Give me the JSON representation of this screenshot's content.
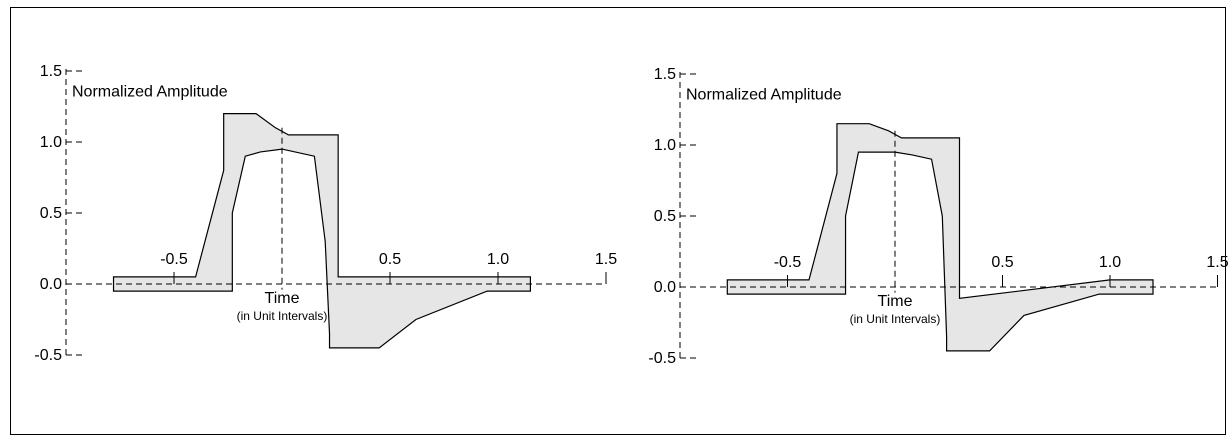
{
  "chart_data": [
    {
      "type": "area",
      "title": "",
      "ylabel": "Normalized Amplitude",
      "xlabel": "Time",
      "xlabel_sub": "(in Unit Intervals)",
      "xlim": [
        -1.0,
        1.5
      ],
      "ylim": [
        -0.5,
        1.5
      ],
      "x_ticks": [
        -0.5,
        0.5,
        1.0,
        1.5
      ],
      "x_tick_labels": [
        "-0.5",
        "0.5",
        "1.0",
        "1.5"
      ],
      "y_ticks": [
        -0.5,
        0.0,
        0.5,
        1.0,
        1.5
      ],
      "y_tick_labels": [
        "-0.5",
        "0.0",
        "0.5",
        "1.0",
        "1.5"
      ],
      "grid": false,
      "series": [
        {
          "upper": [
            [
              -0.78,
              0.05
            ],
            [
              -0.4,
              0.05
            ],
            [
              -0.27,
              0.8
            ],
            [
              -0.27,
              1.2
            ],
            [
              -0.12,
              1.2
            ],
            [
              -0.03,
              1.1
            ],
            [
              0.03,
              1.05
            ],
            [
              0.26,
              1.05
            ],
            [
              0.26,
              0.05
            ],
            [
              0.82,
              0.05
            ],
            [
              1.15,
              0.05
            ]
          ],
          "lower": [
            [
              -0.78,
              -0.05
            ],
            [
              -0.23,
              -0.05
            ],
            [
              -0.23,
              0.5
            ],
            [
              -0.17,
              0.9
            ],
            [
              -0.1,
              0.93
            ],
            [
              0.0,
              0.95
            ],
            [
              0.15,
              0.9
            ],
            [
              0.2,
              0.3
            ],
            [
              0.22,
              -0.35
            ],
            [
              0.22,
              -0.45
            ],
            [
              0.45,
              -0.45
            ],
            [
              0.62,
              -0.25
            ],
            [
              0.95,
              -0.05
            ],
            [
              1.15,
              -0.05
            ]
          ]
        }
      ]
    },
    {
      "type": "area",
      "title": "",
      "ylabel": "Normalized Amplitude",
      "xlabel": "Time",
      "xlabel_sub": "(in Unit Intervals)",
      "xlim": [
        -1.0,
        1.5
      ],
      "ylim": [
        -0.5,
        1.5
      ],
      "x_ticks": [
        -0.5,
        0.5,
        1.0,
        1.5
      ],
      "x_tick_labels": [
        "-0.5",
        "0.5",
        "1.0",
        "1.5"
      ],
      "y_ticks": [
        -0.5,
        0.0,
        0.5,
        1.0,
        1.5
      ],
      "y_tick_labels": [
        "-0.5",
        "0.0",
        "0.5",
        "1.0",
        "1.5"
      ],
      "grid": false,
      "series": [
        {
          "upper": [
            [
              -0.78,
              0.05
            ],
            [
              -0.4,
              0.05
            ],
            [
              -0.27,
              0.8
            ],
            [
              -0.27,
              1.15
            ],
            [
              -0.12,
              1.15
            ],
            [
              -0.03,
              1.1
            ],
            [
              0.03,
              1.05
            ],
            [
              0.3,
              1.05
            ],
            [
              0.3,
              -0.08
            ],
            [
              1.0,
              0.05
            ],
            [
              1.2,
              0.05
            ]
          ],
          "lower": [
            [
              -0.78,
              -0.05
            ],
            [
              -0.23,
              -0.05
            ],
            [
              -0.23,
              0.5
            ],
            [
              -0.17,
              0.95
            ],
            [
              0.0,
              0.95
            ],
            [
              0.08,
              0.93
            ],
            [
              0.17,
              0.9
            ],
            [
              0.22,
              0.5
            ],
            [
              0.24,
              -0.35
            ],
            [
              0.24,
              -0.45
            ],
            [
              0.44,
              -0.45
            ],
            [
              0.6,
              -0.2
            ],
            [
              0.95,
              -0.05
            ],
            [
              1.2,
              -0.05
            ]
          ]
        }
      ]
    }
  ]
}
